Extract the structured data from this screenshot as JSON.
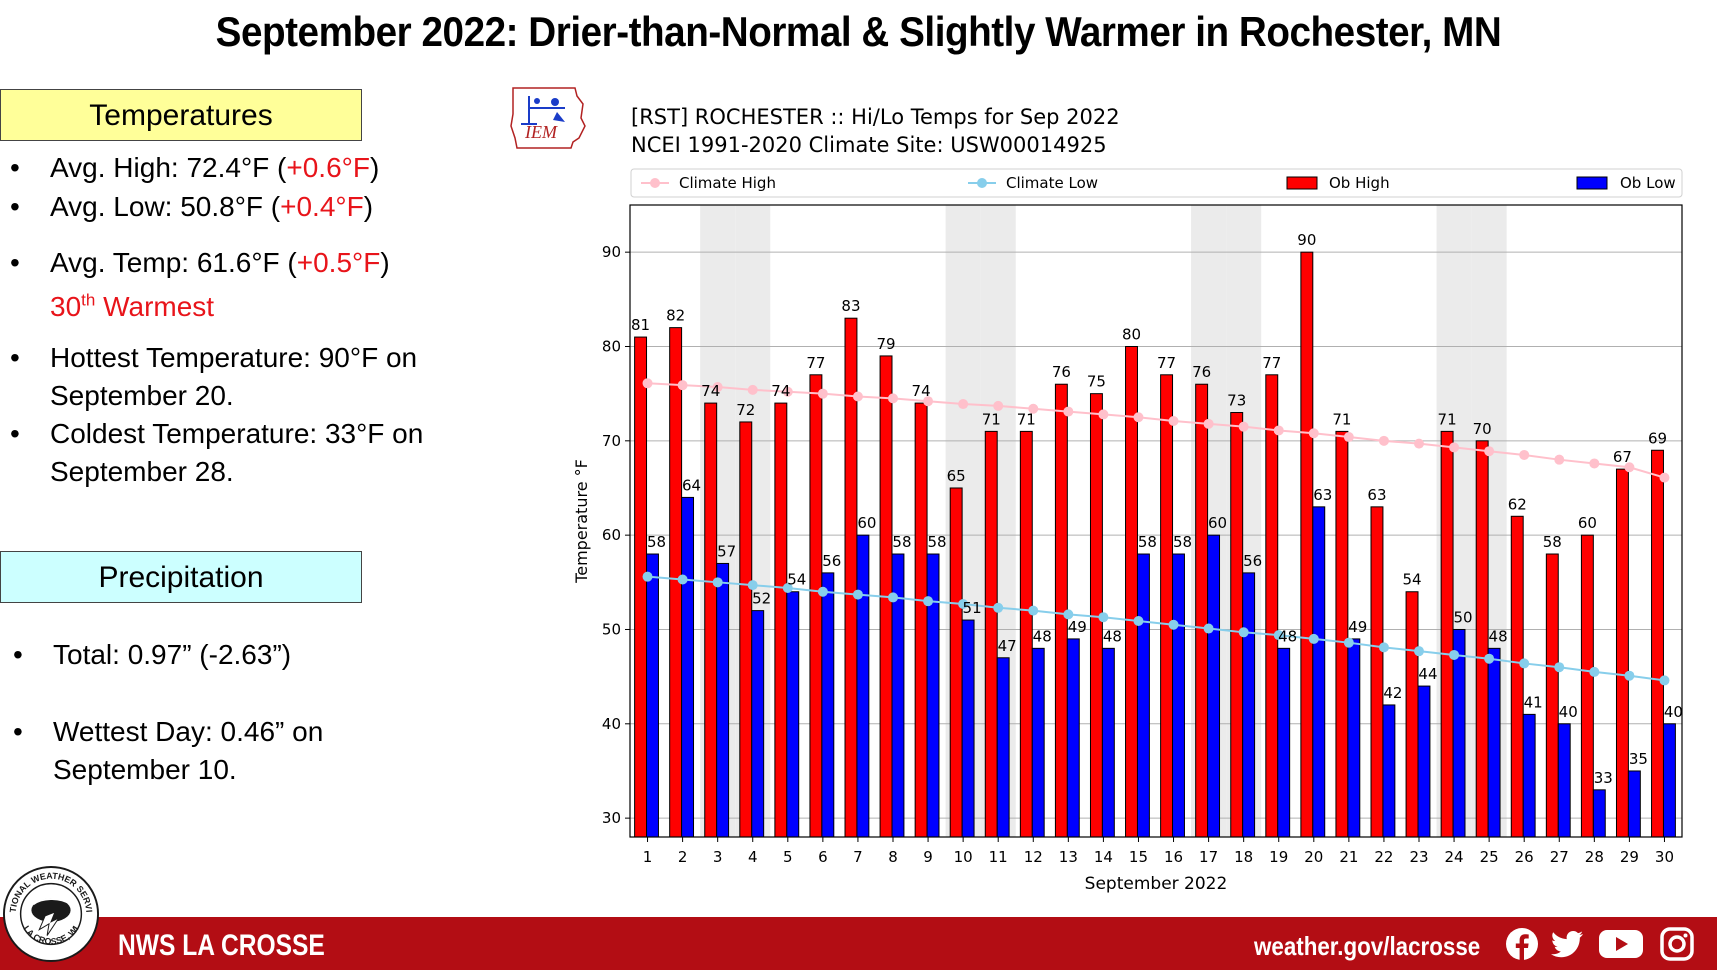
{
  "page_title": "September 2022: Drier-than-Normal & Slightly Warmer in Rochester, MN",
  "temperatures": {
    "header": "Temperatures",
    "avg_high_label": "Avg. High:  72.4°F (",
    "avg_high_dep": "+0.6°F",
    "avg_low_label": "Avg. Low:  50.8°F (",
    "avg_low_dep": "+0.4°F",
    "avg_temp_label": "Avg. Temp:  61.6°F (",
    "avg_temp_dep": "+0.5°F",
    "close_paren": ")",
    "rank_num": "30",
    "rank_sup": "th",
    "rank_text": " Warmest",
    "hottest_line1": "Hottest Temperature: 90°F on",
    "hottest_line2": "September 20.",
    "coldest_line1": "Coldest Temperature: 33°F on",
    "coldest_line2": "September 28."
  },
  "precipitation": {
    "header": "Precipitation",
    "total": "Total:  0.97” (-2.63”)",
    "wettest_line1": "Wettest Day: 0.46” on",
    "wettest_line2": "September 10."
  },
  "bullet_char": "•",
  "footer": {
    "office": "NWS LA CROSSE",
    "website": "weather.gov/lacrosse",
    "social_icons": [
      "facebook-icon",
      "twitter-icon",
      "youtube-icon",
      "instagram-icon"
    ]
  },
  "logos": {
    "nws_seal_text_top": "NATIONAL WEATHER SERVICE",
    "nws_seal_text_bottom": "LA CROSSE, WI",
    "iem_text": "IEM"
  },
  "colors": {
    "ob_high": "#ff0000",
    "ob_low": "#0000ff",
    "climate_high": "#ffc0cb",
    "climate_low": "#87ceeb",
    "footer_red": "#b30d14"
  },
  "chart_data": {
    "type": "bar",
    "title": "[RST] ROCHESTER :: Hi/Lo Temps for Sep 2022",
    "subtitle": "NCEI 1991-2020 Climate Site: USW00014925",
    "xlabel": "September 2022",
    "ylabel": "Temperature  °F",
    "ylim": [
      28,
      95
    ],
    "yticks": [
      30,
      40,
      50,
      60,
      70,
      80,
      90
    ],
    "grid": true,
    "legend_placement": "top",
    "categories": [
      "1",
      "2",
      "3",
      "4",
      "5",
      "6",
      "7",
      "8",
      "9",
      "10",
      "11",
      "12",
      "13",
      "14",
      "15",
      "16",
      "17",
      "18",
      "19",
      "20",
      "21",
      "22",
      "23",
      "24",
      "25",
      "26",
      "27",
      "28",
      "29",
      "30"
    ],
    "shaded_weekend_days": [
      3,
      4,
      10,
      11,
      17,
      18,
      24,
      25
    ],
    "series": [
      {
        "name": "Ob High",
        "type": "bar",
        "values": [
          81,
          82,
          74,
          72,
          74,
          77,
          83,
          79,
          74,
          65,
          71,
          71,
          76,
          75,
          80,
          77,
          76,
          73,
          77,
          90,
          71,
          63,
          54,
          71,
          70,
          62,
          58,
          60,
          67,
          69
        ]
      },
      {
        "name": "Ob Low",
        "type": "bar",
        "values": [
          58,
          64,
          57,
          52,
          54,
          56,
          60,
          58,
          58,
          51,
          47,
          48,
          49,
          48,
          58,
          58,
          60,
          56,
          48,
          63,
          49,
          42,
          44,
          50,
          48,
          41,
          40,
          33,
          35,
          40
        ]
      },
      {
        "name": "Climate High",
        "type": "line",
        "values": [
          76.1,
          75.9,
          75.7,
          75.4,
          75.2,
          75.0,
          74.7,
          74.5,
          74.2,
          73.9,
          73.7,
          73.4,
          73.1,
          72.8,
          72.5,
          72.1,
          71.8,
          71.5,
          71.1,
          70.8,
          70.4,
          70.0,
          69.7,
          69.3,
          68.9,
          68.5,
          68.0,
          67.6,
          67.2,
          66.1
        ]
      },
      {
        "name": "Climate Low",
        "type": "line",
        "values": [
          55.6,
          55.3,
          55.0,
          54.7,
          54.4,
          54.0,
          53.7,
          53.4,
          53.0,
          52.7,
          52.3,
          52.0,
          51.6,
          51.3,
          50.9,
          50.5,
          50.1,
          49.7,
          49.4,
          49.0,
          48.6,
          48.1,
          47.7,
          47.3,
          46.9,
          46.4,
          46.0,
          45.5,
          45.1,
          44.6
        ]
      }
    ]
  }
}
